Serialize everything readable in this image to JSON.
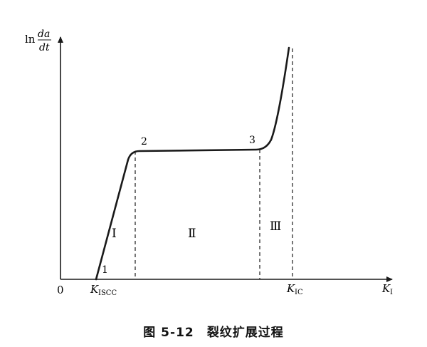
{
  "figure": {
    "y_axis_label": {
      "prefix": "ln",
      "numerator": "da",
      "denominator": "dt"
    },
    "origin_label": "0",
    "x_axis_label": {
      "main": "K",
      "sub": "I"
    },
    "tick_labels": {
      "kiscc": {
        "main": "K",
        "sub": "ISCC"
      },
      "kic": {
        "main": "K",
        "sub": "IC"
      }
    },
    "point_labels": [
      "1",
      "2",
      "3"
    ],
    "region_labels": [
      "Ⅰ",
      "Ⅱ",
      "Ⅲ"
    ]
  },
  "caption": {
    "number": "图 5-12",
    "title": "裂纹扩展过程"
  }
}
